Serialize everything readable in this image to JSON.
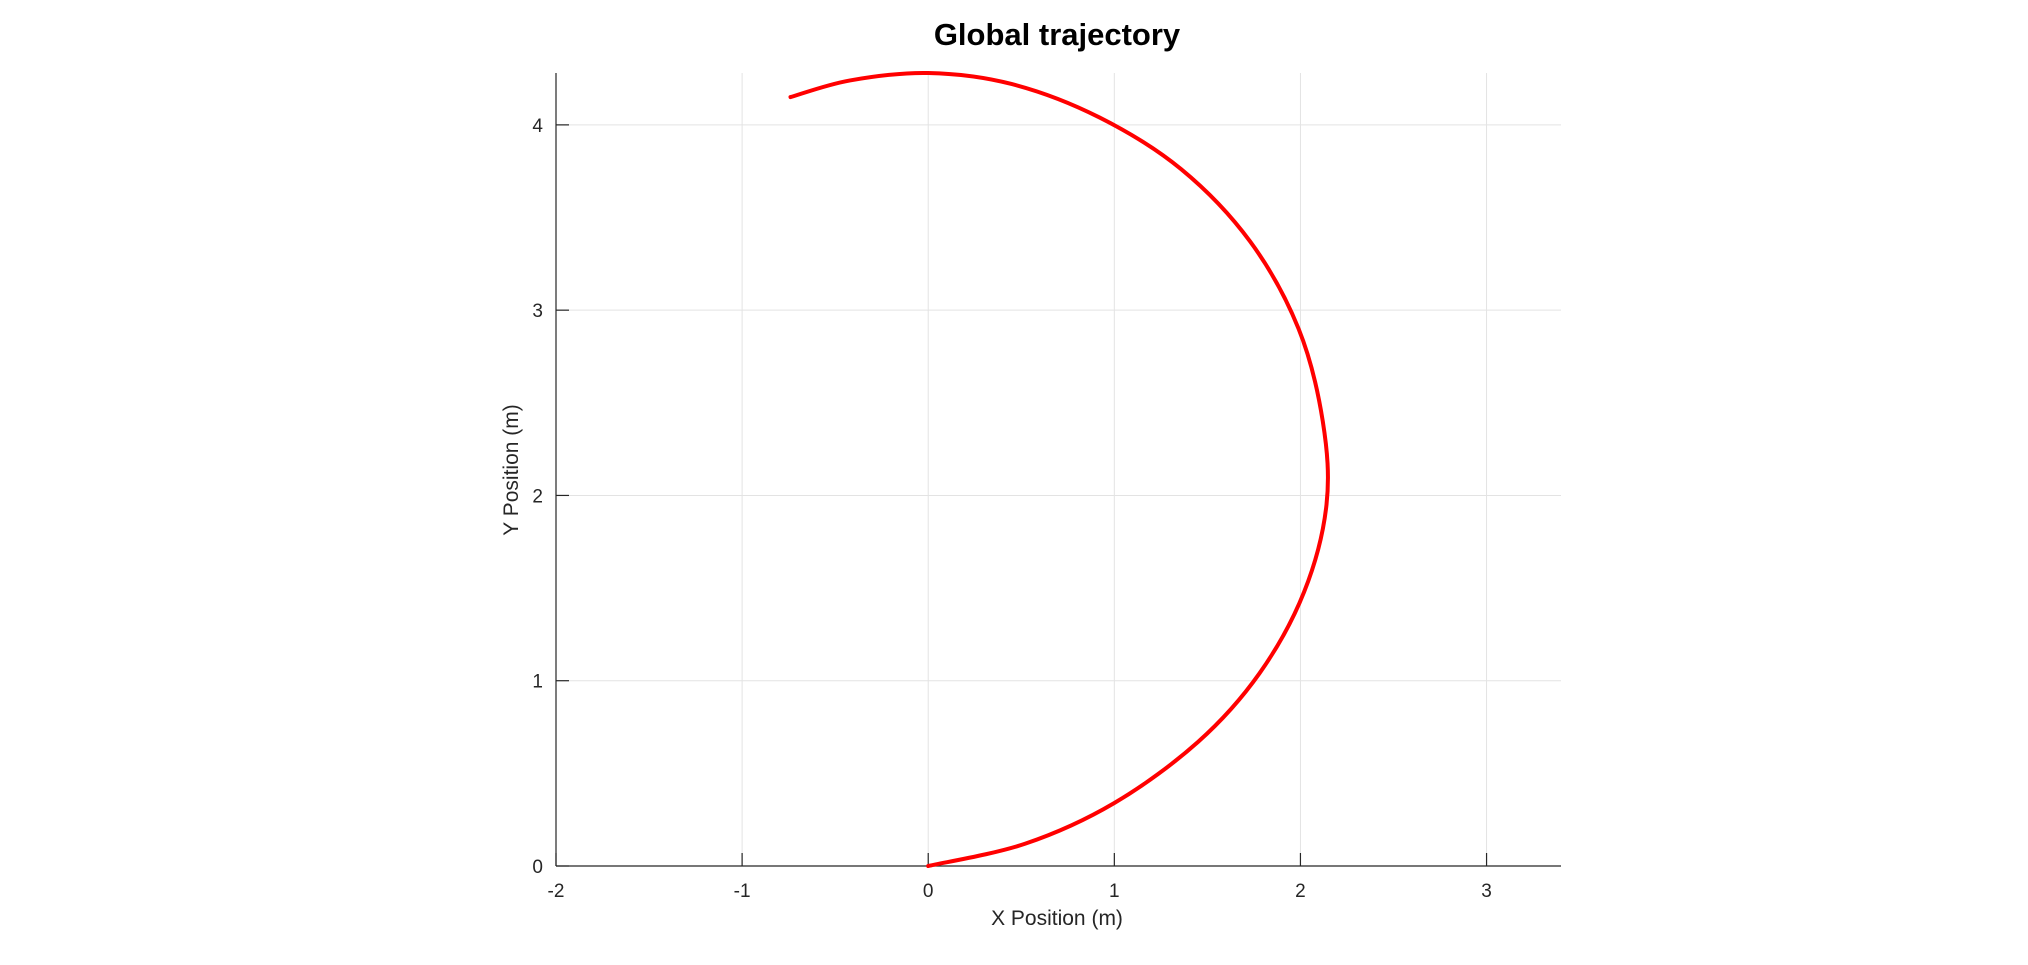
{
  "chart_data": {
    "type": "line",
    "title": "Global trajectory",
    "xlabel": "X Position (m)",
    "ylabel": "Y Position (m)",
    "xlim": [
      -2,
      3.4
    ],
    "ylim": [
      0,
      4.28
    ],
    "xticks": [
      "-2",
      "-1",
      "0",
      "1",
      "2",
      "3"
    ],
    "yticks": [
      "0",
      "1",
      "2",
      "3",
      "4"
    ],
    "grid": true,
    "series": [
      {
        "color": "#ff0000",
        "x": [
          0.0,
          0.52,
          1.0,
          1.45,
          1.78,
          2.02,
          2.14,
          2.12,
          1.99,
          1.73,
          1.36,
          0.92,
          0.45,
          0.0,
          -0.42,
          -0.74
        ],
        "y": [
          0.0,
          0.12,
          0.34,
          0.67,
          1.04,
          1.48,
          1.95,
          2.4,
          2.9,
          3.37,
          3.76,
          4.04,
          4.22,
          4.28,
          4.24,
          4.15
        ]
      }
    ]
  }
}
